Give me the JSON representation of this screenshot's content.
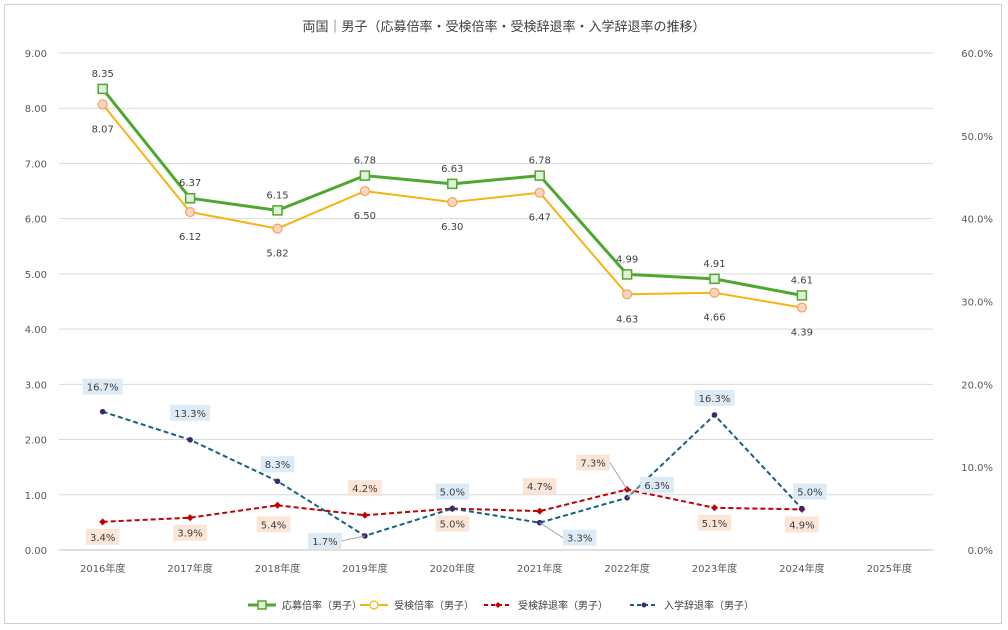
{
  "chart_data": {
    "type": "line",
    "title": "両国｜男子（応募倍率・受検倍率・受検辞退率・入学辞退率の推移）",
    "categories": [
      "2016年度",
      "2017年度",
      "2018年度",
      "2019年度",
      "2020年度",
      "2021年度",
      "2022年度",
      "2023年度",
      "2024年度",
      "2025年度"
    ],
    "y_left": {
      "min": 0,
      "max": 9,
      "step": 1,
      "tick_labels": [
        "0.00",
        "1.00",
        "2.00",
        "3.00",
        "4.00",
        "5.00",
        "6.00",
        "7.00",
        "8.00",
        "9.00"
      ]
    },
    "y_right": {
      "min": 0,
      "max": 60,
      "step": 10,
      "tick_labels": [
        "0.0%",
        "10.0%",
        "20.0%",
        "30.0%",
        "40.0%",
        "50.0%",
        "60.0%"
      ]
    },
    "series": [
      {
        "name": "応募倍率（男子）",
        "axis": "left",
        "color": "#4ea72e",
        "style": "solid-square",
        "values": [
          8.35,
          6.37,
          6.15,
          6.78,
          6.63,
          6.78,
          4.99,
          4.91,
          4.61,
          null
        ],
        "labels": [
          "8.35",
          "6.37",
          "6.15",
          "6.78",
          "6.63",
          "6.78",
          "4.99",
          "4.91",
          "4.61",
          ""
        ]
      },
      {
        "name": "受検倍率（男子）",
        "axis": "left",
        "color": "#f5b315",
        "style": "solid-circle",
        "values": [
          8.07,
          6.12,
          5.82,
          6.5,
          6.3,
          6.47,
          4.63,
          4.66,
          4.39,
          null
        ],
        "labels": [
          "8.07",
          "6.12",
          "5.82",
          "6.50",
          "6.30",
          "6.47",
          "4.63",
          "4.66",
          "4.39",
          ""
        ]
      },
      {
        "name": "受検辞退率（男子）",
        "axis": "right",
        "color": "#c00000",
        "style": "dashed-diamond",
        "values": [
          3.4,
          3.9,
          5.4,
          4.2,
          5.0,
          4.7,
          7.3,
          5.1,
          4.9,
          null
        ],
        "labels": [
          "3.4%",
          "3.9%",
          "5.4%",
          "4.2%",
          "5.0%",
          "4.7%",
          "7.3%",
          "5.1%",
          "4.9%",
          ""
        ]
      },
      {
        "name": "入学辞退率（男子）",
        "axis": "right",
        "color": "#156082",
        "style": "dashed-circle",
        "values": [
          16.7,
          13.3,
          8.3,
          1.7,
          5.0,
          3.3,
          6.3,
          16.3,
          5.0,
          null
        ],
        "labels": [
          "16.7%",
          "13.3%",
          "8.3%",
          "1.7%",
          "5.0%",
          "3.3%",
          "6.3%",
          "16.3%",
          "5.0%",
          ""
        ]
      }
    ],
    "legend": {
      "position": "bottom"
    }
  }
}
